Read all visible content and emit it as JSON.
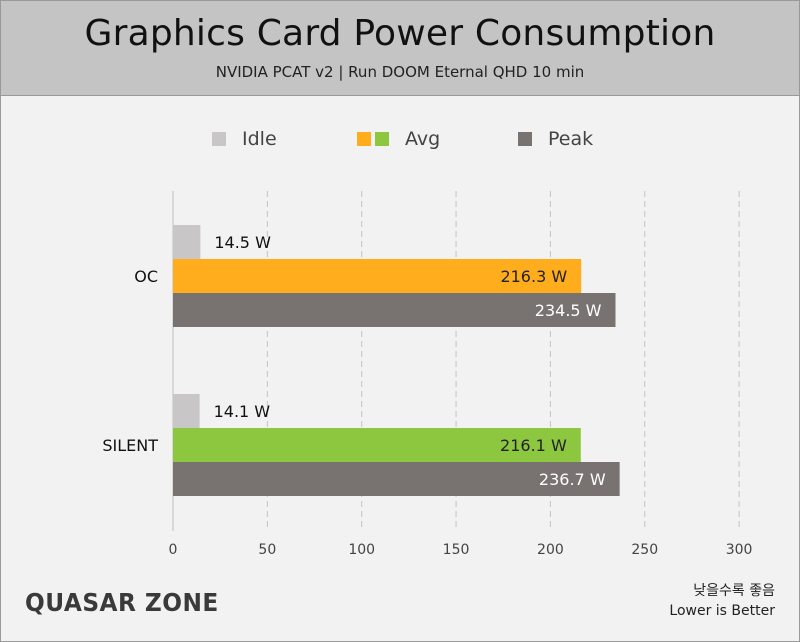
{
  "chart_data": {
    "type": "bar",
    "orientation": "horizontal",
    "title": "Graphics Card Power Consumption",
    "subtitle": "NVIDIA PCAT v2  |  Run DOOM Eternal QHD 10 min",
    "categories": [
      "OC",
      "SILENT"
    ],
    "series": [
      {
        "name": "Idle",
        "values": [
          14.5,
          14.1
        ],
        "labels": [
          "14.5 W",
          "14.1 W"
        ],
        "colors": [
          "#c8c6c6",
          "#c8c6c6"
        ]
      },
      {
        "name": "Avg",
        "values": [
          216.3,
          216.1
        ],
        "labels": [
          "216.3 W",
          "216.1 W"
        ],
        "colors": [
          "#ffad1c",
          "#8dc63f"
        ]
      },
      {
        "name": "Peak",
        "values": [
          234.5,
          236.7
        ],
        "labels": [
          "234.5 W",
          "236.7 W"
        ],
        "colors": [
          "#787271",
          "#787271"
        ]
      }
    ],
    "xlim": [
      0,
      300
    ],
    "xticks": [
      "0",
      "50",
      "100",
      "150",
      "200",
      "250",
      "300"
    ],
    "grid": "vertical dashed",
    "legend_position": "top"
  },
  "legend": {
    "idle_label": "Idle",
    "avg_label": "Avg",
    "peak_label": "Peak",
    "idle_color": "#c8c6c6",
    "avg_color_a": "#ffad1c",
    "avg_color_b": "#8dc63f",
    "peak_color": "#787271"
  },
  "footer": {
    "brand": "QUASAR ZONE",
    "note_korean": "낮을수록 좋음",
    "note_english": "Lower is Better"
  }
}
